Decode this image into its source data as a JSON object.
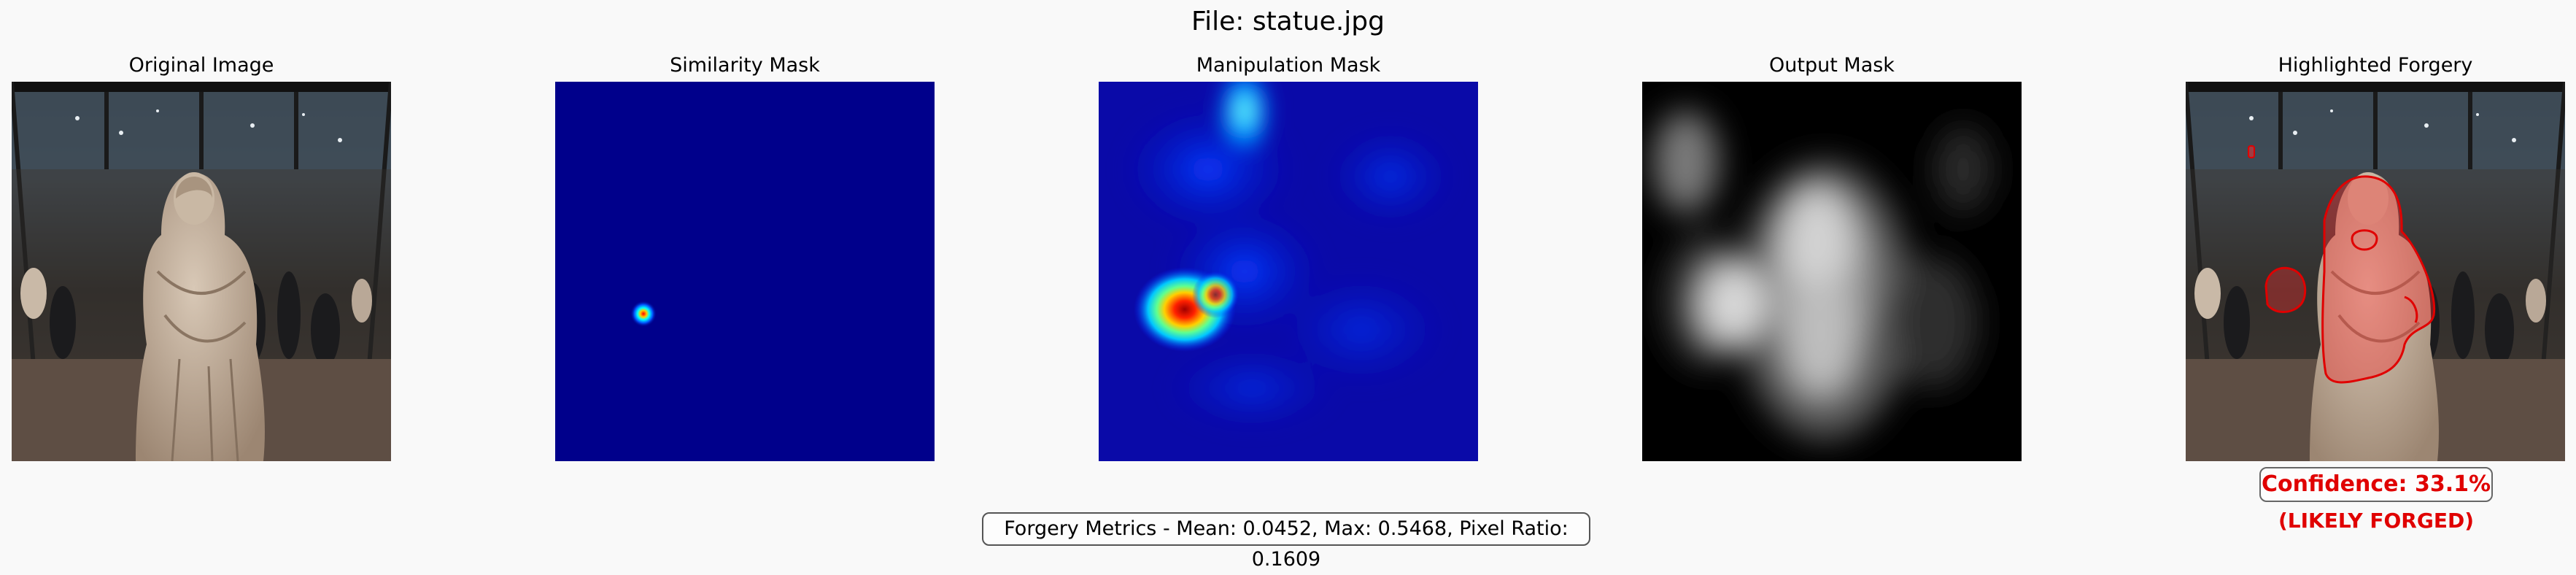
{
  "figure": {
    "title": "File: statue.jpg"
  },
  "panels": [
    {
      "title": "Original Image"
    },
    {
      "title": "Similarity Mask"
    },
    {
      "title": "Manipulation Mask"
    },
    {
      "title": "Output Mask"
    },
    {
      "title": "Highlighted Forgery"
    }
  ],
  "metrics": {
    "text": "Forgery Metrics - Mean: 0.0452, Max: 0.5468, Pixel Ratio: 0.1609"
  },
  "result": {
    "confidence": "Confidence: 33.1%",
    "verdict": "(LIKELY FORGED)"
  },
  "colors": {
    "background": "#f9f9f9",
    "alert": "#e00000",
    "heatmap_base": "#00008b"
  }
}
